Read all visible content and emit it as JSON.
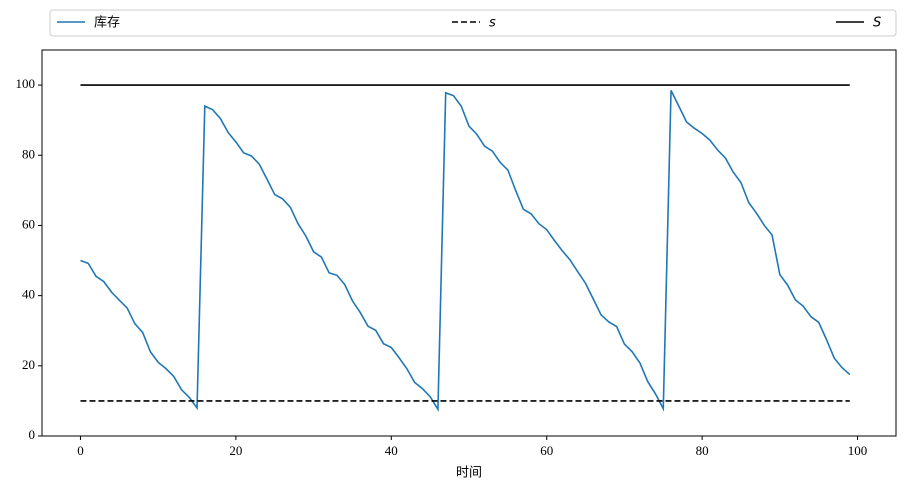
{
  "chart_data": {
    "type": "line",
    "xlabel": "时间",
    "xlim": [
      -4.95,
      104.95
    ],
    "xticks": [
      0,
      20,
      40,
      60,
      80,
      100
    ],
    "ylim": [
      0,
      110
    ],
    "yticks": [
      0,
      20,
      40,
      60,
      80,
      100
    ],
    "legend": "top",
    "legend_columns": 3,
    "series": [
      {
        "name": "库存",
        "color": "#1f77b4",
        "linestyle": "solid",
        "x": [
          0,
          1,
          2,
          3,
          4,
          5,
          6,
          7,
          8,
          9,
          10,
          11,
          12,
          13,
          14,
          15,
          16,
          17,
          18,
          19,
          20,
          21,
          22,
          23,
          24,
          25,
          26,
          27,
          28,
          29,
          30,
          31,
          32,
          33,
          34,
          35,
          36,
          37,
          38,
          39,
          40,
          41,
          42,
          43,
          44,
          45,
          46,
          47,
          48,
          49,
          50,
          51,
          52,
          53,
          54,
          55,
          56,
          57,
          58,
          59,
          60,
          61,
          62,
          63,
          64,
          65,
          66,
          67,
          68,
          69,
          70,
          71,
          72,
          73,
          74,
          75,
          76,
          77,
          78,
          79,
          80,
          81,
          82,
          83,
          84,
          85,
          86,
          87,
          88,
          89,
          90,
          91,
          92,
          93,
          94,
          95,
          96,
          97,
          98,
          99
        ],
        "values": [
          50,
          49.2,
          45.5,
          44,
          41,
          38.7,
          36.5,
          32,
          29.5,
          24,
          21,
          19.2,
          17,
          13.2,
          11,
          8,
          94,
          93,
          90.5,
          86.5,
          83.8,
          80.7,
          79.8,
          77.5,
          73.2,
          68.8,
          67.6,
          65.2,
          60.5,
          57,
          52.5,
          51,
          46.5,
          45.8,
          43.2,
          38.5,
          35.2,
          31.3,
          30.1,
          26.3,
          25.2,
          22.3,
          19.2,
          15.3,
          13.5,
          11.2,
          7.6,
          97.8,
          97,
          94,
          88.3,
          86,
          82.6,
          81.2,
          78,
          75.8,
          70,
          64.6,
          63.3,
          60.5,
          58.8,
          55.7,
          52.8,
          50.2,
          46.8,
          43.5,
          39,
          34.5,
          32.5,
          31.2,
          26.2,
          24,
          20.8,
          15.5,
          12,
          7.8,
          98.5,
          94,
          89.5,
          87.7,
          86.2,
          84.3,
          81.5,
          79.2,
          75.2,
          72.2,
          66.5,
          63.5,
          60,
          57.3,
          46,
          43,
          38.8,
          37,
          34,
          32.4,
          27.5,
          22.2,
          19.5,
          17.5
        ]
      },
      {
        "name": "s",
        "color": "#000000",
        "linestyle": "dashed",
        "x": [
          0,
          99
        ],
        "values": [
          10,
          10
        ]
      },
      {
        "name": "S",
        "color": "#000000",
        "linestyle": "solid",
        "x": [
          0,
          99
        ],
        "values": [
          100,
          100
        ]
      }
    ]
  }
}
